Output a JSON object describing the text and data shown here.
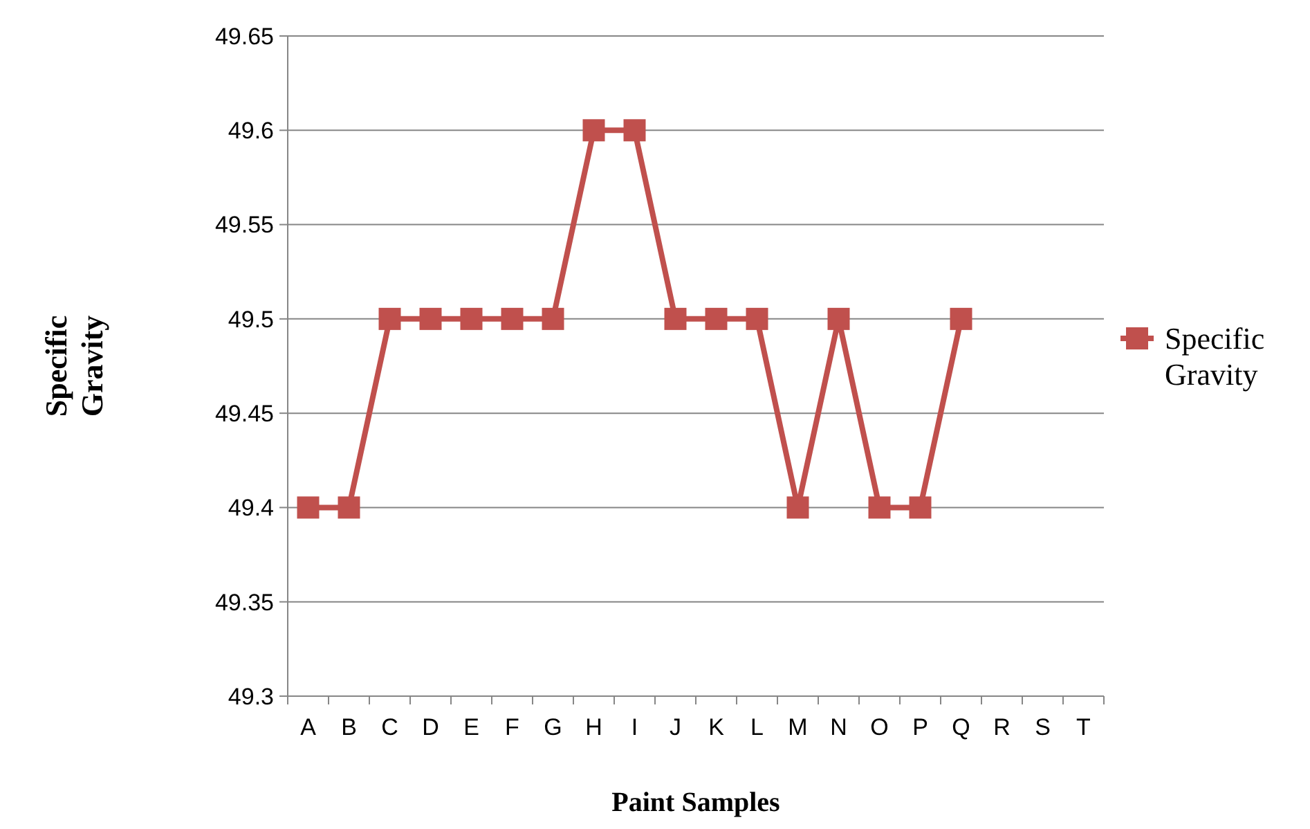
{
  "chart_data": {
    "type": "line",
    "xlabel": "Paint Samples",
    "ylabel": "Specific Gravity",
    "categories": [
      "A",
      "B",
      "C",
      "D",
      "E",
      "F",
      "G",
      "H",
      "I",
      "J",
      "K",
      "L",
      "M",
      "N",
      "O",
      "P",
      "Q",
      "R",
      "S",
      "T"
    ],
    "series": [
      {
        "name": "Specific Gravity",
        "color": "#c0504d",
        "values": [
          49.4,
          49.4,
          49.5,
          49.5,
          49.5,
          49.5,
          49.5,
          49.6,
          49.6,
          49.5,
          49.5,
          49.5,
          49.4,
          49.5,
          49.4,
          49.4,
          49.5,
          null,
          null,
          null
        ]
      }
    ],
    "ylim": [
      49.3,
      49.65
    ],
    "yticks": [
      49.3,
      49.35,
      49.4,
      49.45,
      49.5,
      49.55,
      49.6,
      49.65
    ],
    "grid": "y",
    "legend": "right",
    "marker": "square",
    "line_style": "solid"
  }
}
